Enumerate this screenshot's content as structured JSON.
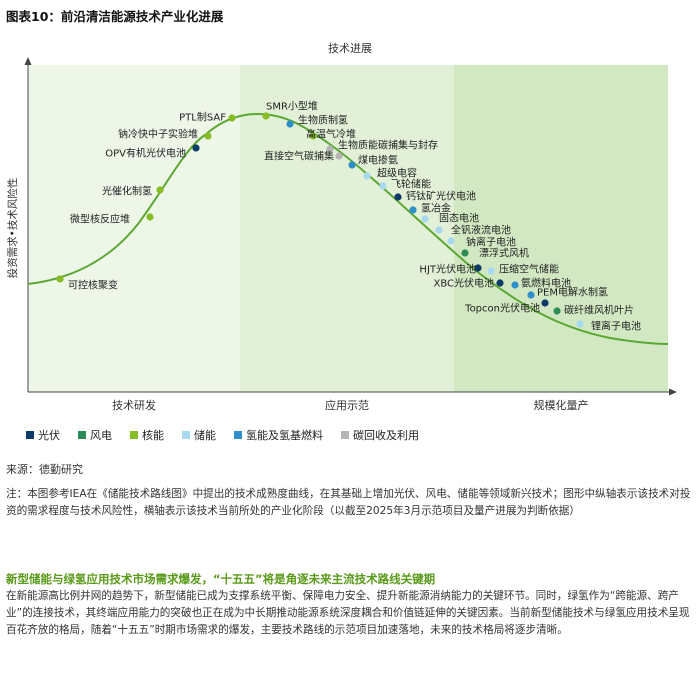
{
  "figure_title": "图表10：前沿清洁能源技术产业化进展",
  "chart_data": {
    "type": "scatter",
    "title": "技术进展",
    "ylabel": "投资需求•技术风险性",
    "phases": [
      "技术研发",
      "应用示范",
      "规模化量产"
    ],
    "phase_colors": [
      "#eef6e8",
      "#e2f0d8",
      "#d2e8c2"
    ],
    "curve_color": "#5aa832",
    "categories": [
      {
        "name": "光伏",
        "color": "#0d3b66"
      },
      {
        "name": "风电",
        "color": "#2e8b57"
      },
      {
        "name": "核能",
        "color": "#86bc25"
      },
      {
        "name": "储能",
        "color": "#a7d8f0"
      },
      {
        "name": "氢能及氢基燃料",
        "color": "#2e8fc9"
      },
      {
        "name": "碳回收及利用",
        "color": "#b5b5b5"
      }
    ],
    "points": [
      {
        "label": "可控核聚变",
        "category": "核能"
      },
      {
        "label": "微型核反应堆",
        "category": "核能"
      },
      {
        "label": "光催化制氢",
        "category": "核能"
      },
      {
        "label": "OPV有机光伏电池",
        "category": "光伏"
      },
      {
        "label": "钠冷快中子实验堆",
        "category": "核能"
      },
      {
        "label": "PTL制SAF",
        "category": "核能"
      },
      {
        "label": "SMR小型堆",
        "category": "核能"
      },
      {
        "label": "生物质制氢",
        "category": "氢能及氢基燃料"
      },
      {
        "label": "高温气冷堆",
        "category": "核能"
      },
      {
        "label": "生物质能碳捕集与封存",
        "category": "碳回收及利用"
      },
      {
        "label": "直接空气碳捕集",
        "category": "碳回收及利用"
      },
      {
        "label": "煤电掺氨",
        "category": "氢能及氢基燃料"
      },
      {
        "label": "超级电容",
        "category": "储能"
      },
      {
        "label": "飞轮储能",
        "category": "储能"
      },
      {
        "label": "钙钛矿光伏电池",
        "category": "光伏"
      },
      {
        "label": "氢冶金",
        "category": "氢能及氢基燃料"
      },
      {
        "label": "固态电池",
        "category": "储能"
      },
      {
        "label": "全钒液流电池",
        "category": "储能"
      },
      {
        "label": "钠离子电池",
        "category": "储能"
      },
      {
        "label": "漂浮式风机",
        "category": "风电"
      },
      {
        "label": "HJT光伏电池",
        "category": "光伏"
      },
      {
        "label": "压缩空气储能",
        "category": "储能"
      },
      {
        "label": "XBC光伏电池",
        "category": "光伏"
      },
      {
        "label": "氨燃料电池",
        "category": "氢能及氢基燃料"
      },
      {
        "label": "PEM电解水制氢",
        "category": "氢能及氢基燃料"
      },
      {
        "label": "Topcon光伏电池",
        "category": "光伏"
      },
      {
        "label": "碳纤维风机叶片",
        "category": "风电"
      },
      {
        "label": "锂离子电池",
        "category": "储能"
      }
    ]
  },
  "source": "来源：德勤研究",
  "note": "注：本图参考IEA在《储能技术路线图》中提出的技术成熟度曲线，在其基础上增加光伏、风电、储能等领域新兴技术；图形中纵轴表示该技术对投资的需求程度与技术风险性，横轴表示该技术当前所处的产业化阶段（以截至2025年3月示范项目及量产进展为判断依据）",
  "section_title": "新型储能与绿氢应用技术市场需求爆发，“十五五”将是角逐未来主流技术路线关键期",
  "section_body": "在新能源高比例并网的趋势下，新型储能已成为支撑系统平衡、保障电力安全、提升新能源消纳能力的关键环节。同时，绿氢作为“跨能源、跨产业”的连接技术，其终端应用能力的突破也正在成为中长期推动能源系统深度耦合和价值链延伸的关键因素。当前新型储能技术与绿氢应用技术呈现百花齐放的格局，随着“十五五”时期市场需求的爆发，主要技术路线的示范项目加速落地，未来的技术格局将逐步清晰。"
}
